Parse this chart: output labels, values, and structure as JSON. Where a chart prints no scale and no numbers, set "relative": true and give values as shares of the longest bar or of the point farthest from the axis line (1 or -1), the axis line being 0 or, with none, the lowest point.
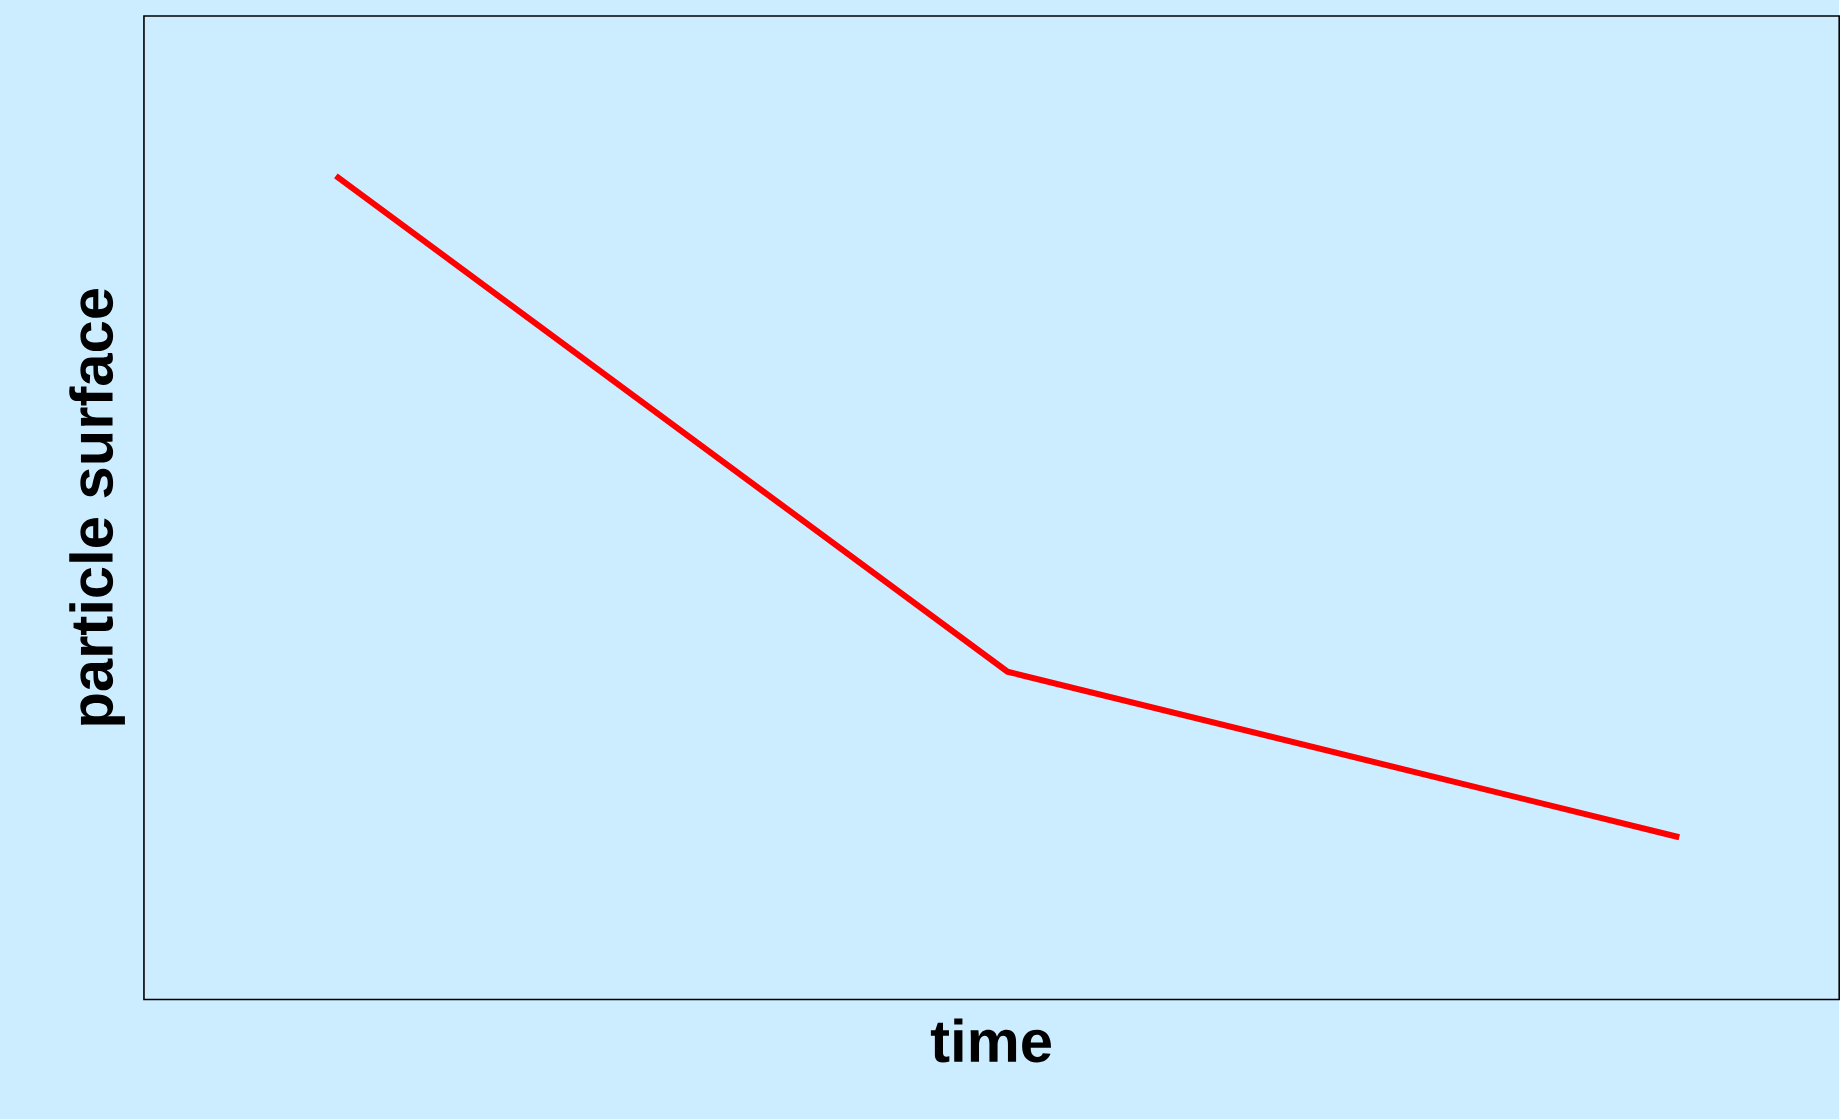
{
  "chart_data": {
    "type": "line",
    "relative": true,
    "xlabel": "time",
    "ylabel": "particle surface",
    "categories": [
      null,
      null,
      null
    ],
    "series": [
      {
        "color": "#ff0000",
        "values": [
          1,
          0.398,
          0.197
        ]
      }
    ]
  }
}
